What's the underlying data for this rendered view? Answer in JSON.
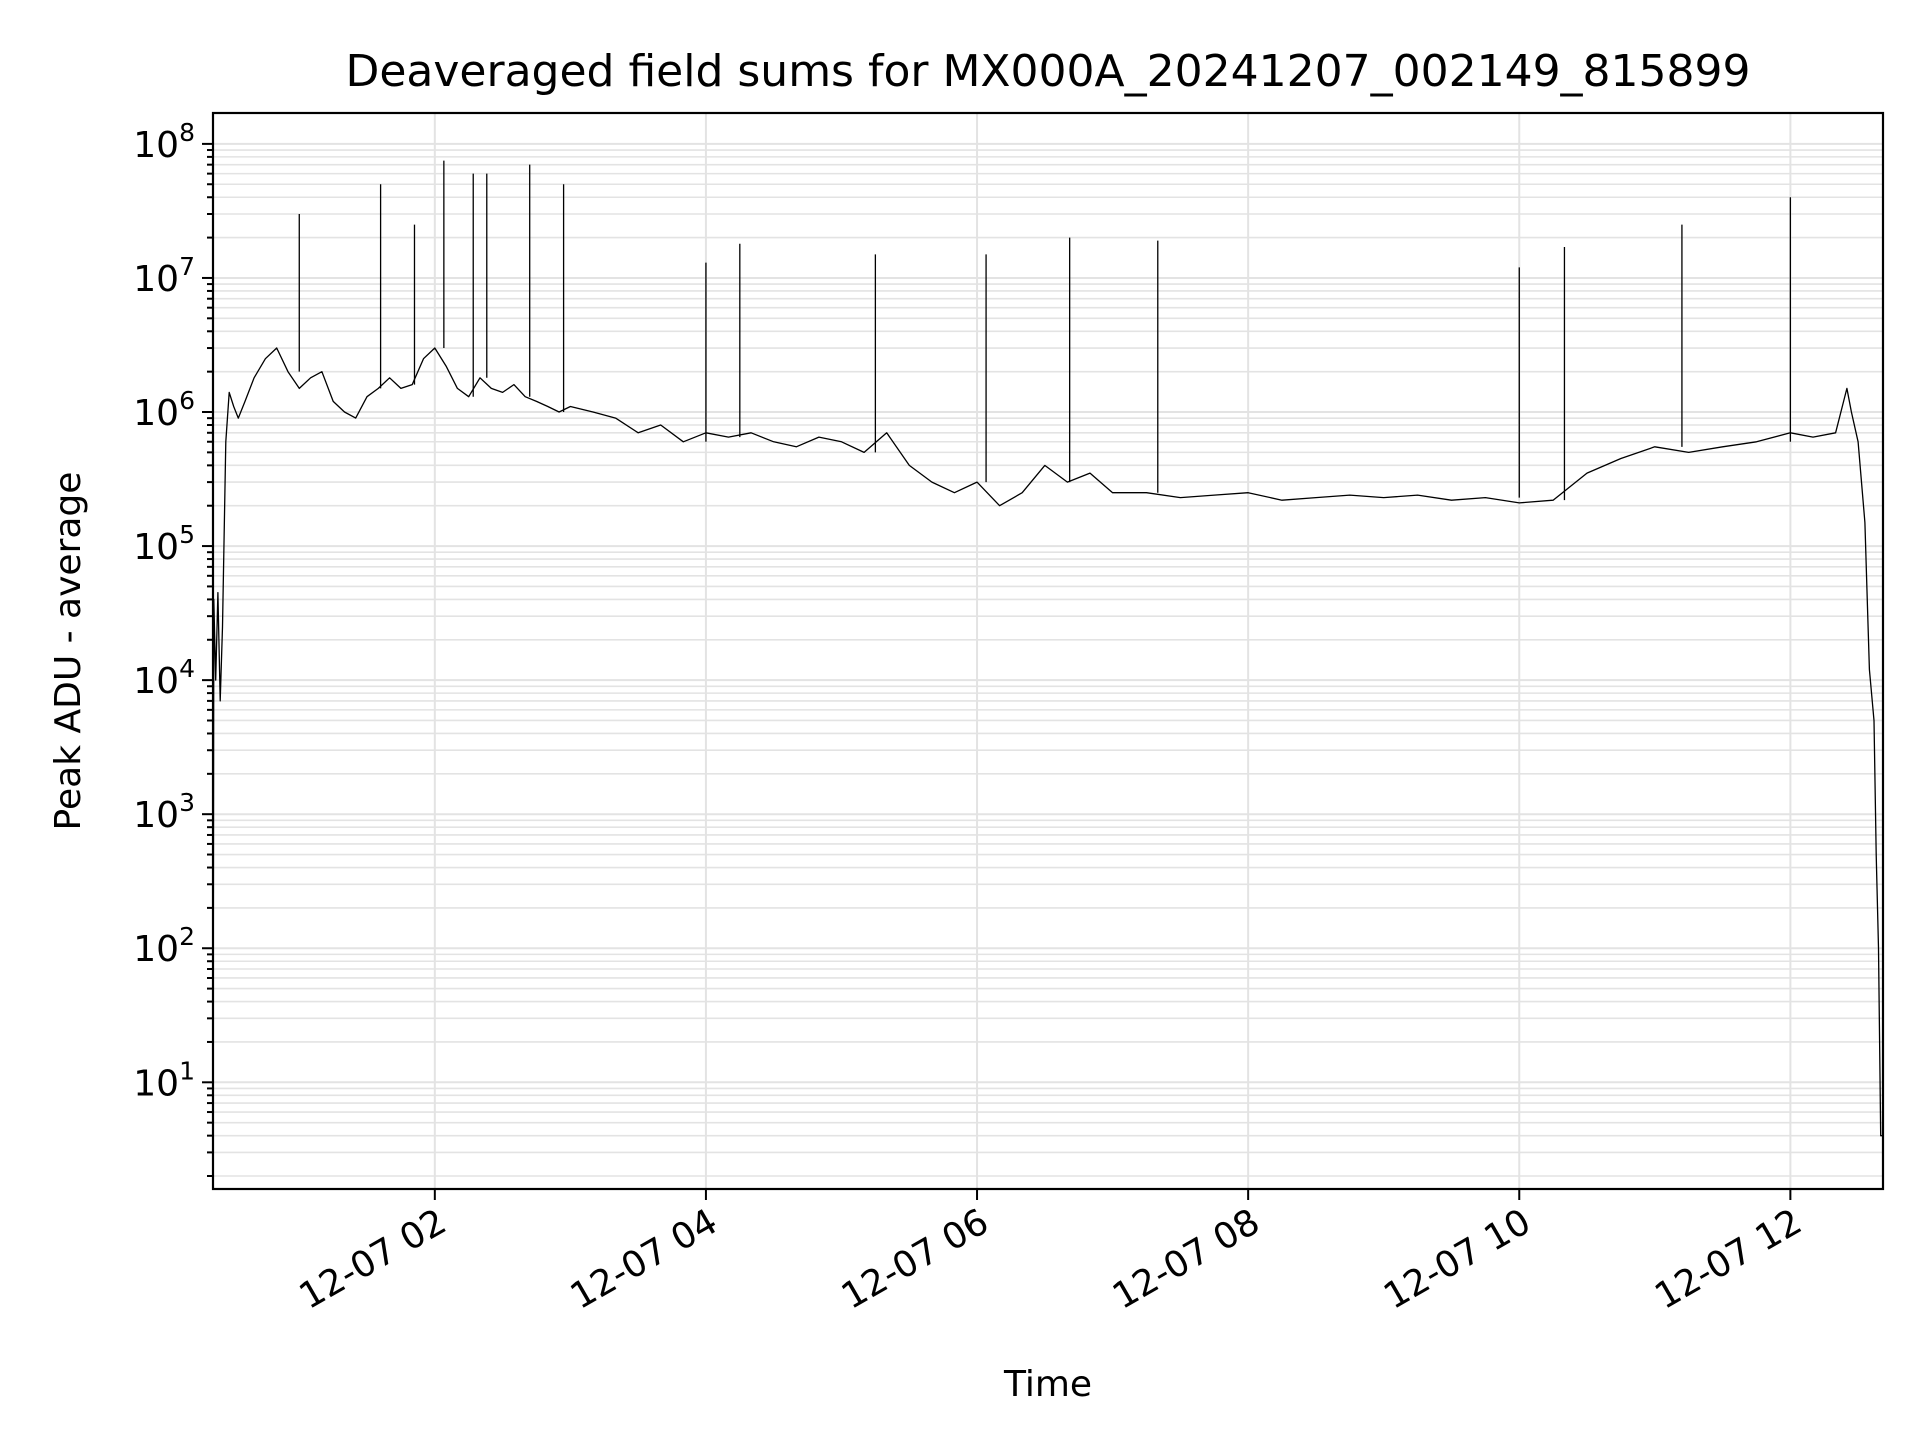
{
  "chart_data": {
    "type": "line",
    "title": "Deaveraged field sums for MX000A_20241207_002149_815899",
    "xlabel": "Time",
    "ylabel": "Peak ADU - average",
    "xscale": "time",
    "yscale": "log",
    "xlim": [
      "2024-12-07T00:21:49",
      "2024-12-07T12:41:00"
    ],
    "ylim": [
      1.6,
      170000000
    ],
    "grid": "major and minor, both axes",
    "line_color": "#000000",
    "x_ticks": [
      {
        "value": "2024-12-07T02:00:00",
        "label": "12-07 02"
      },
      {
        "value": "2024-12-07T04:00:00",
        "label": "12-07 04"
      },
      {
        "value": "2024-12-07T06:00:00",
        "label": "12-07 06"
      },
      {
        "value": "2024-12-07T08:00:00",
        "label": "12-07 08"
      },
      {
        "value": "2024-12-07T10:00:00",
        "label": "12-07 10"
      },
      {
        "value": "2024-12-07T12:00:00",
        "label": "12-07 12"
      }
    ],
    "y_ticks": [
      {
        "value": 10,
        "base": "10",
        "exp": "1"
      },
      {
        "value": 100,
        "base": "10",
        "exp": "2"
      },
      {
        "value": 1000,
        "base": "10",
        "exp": "3"
      },
      {
        "value": 10000,
        "base": "10",
        "exp": "4"
      },
      {
        "value": 100000,
        "base": "10",
        "exp": "5"
      },
      {
        "value": 1000000,
        "base": "10",
        "exp": "6"
      },
      {
        "value": 10000000,
        "base": "10",
        "exp": "7"
      },
      {
        "value": 100000000,
        "base": "10",
        "exp": "8"
      }
    ],
    "series": [
      {
        "x": [
          "2024-12-07T00:21:49",
          "2024-12-07T00:22:10",
          "2024-12-07T00:23:00",
          "2024-12-07T00:24:00",
          "2024-12-07T00:25:00",
          "2024-12-07T00:26:00",
          "2024-12-07T00:27:30",
          "2024-12-07T00:29:00",
          "2024-12-07T00:31:00",
          "2024-12-07T00:33:00",
          "2024-12-07T00:36:00",
          "2024-12-07T00:40:00",
          "2024-12-07T00:45:00",
          "2024-12-07T00:50:00",
          "2024-12-07T00:55:00",
          "2024-12-07T01:00:00",
          "2024-12-07T01:05:00",
          "2024-12-07T01:10:00",
          "2024-12-07T01:15:00",
          "2024-12-07T01:20:00",
          "2024-12-07T01:25:00",
          "2024-12-07T01:30:00",
          "2024-12-07T01:35:00",
          "2024-12-07T01:40:00",
          "2024-12-07T01:45:00",
          "2024-12-07T01:50:00",
          "2024-12-07T01:55:00",
          "2024-12-07T02:00:00",
          "2024-12-07T02:05:00",
          "2024-12-07T02:10:00",
          "2024-12-07T02:15:00",
          "2024-12-07T02:20:00",
          "2024-12-07T02:25:00",
          "2024-12-07T02:30:00",
          "2024-12-07T02:35:00",
          "2024-12-07T02:40:00",
          "2024-12-07T02:45:00",
          "2024-12-07T02:50:00",
          "2024-12-07T02:55:00",
          "2024-12-07T03:00:00",
          "2024-12-07T03:10:00",
          "2024-12-07T03:20:00",
          "2024-12-07T03:30:00",
          "2024-12-07T03:40:00",
          "2024-12-07T03:50:00",
          "2024-12-07T04:00:00",
          "2024-12-07T04:10:00",
          "2024-12-07T04:20:00",
          "2024-12-07T04:30:00",
          "2024-12-07T04:40:00",
          "2024-12-07T04:50:00",
          "2024-12-07T05:00:00",
          "2024-12-07T05:10:00",
          "2024-12-07T05:20:00",
          "2024-12-07T05:30:00",
          "2024-12-07T05:40:00",
          "2024-12-07T05:50:00",
          "2024-12-07T06:00:00",
          "2024-12-07T06:10:00",
          "2024-12-07T06:20:00",
          "2024-12-07T06:30:00",
          "2024-12-07T06:40:00",
          "2024-12-07T06:50:00",
          "2024-12-07T07:00:00",
          "2024-12-07T07:15:00",
          "2024-12-07T07:30:00",
          "2024-12-07T07:45:00",
          "2024-12-07T08:00:00",
          "2024-12-07T08:15:00",
          "2024-12-07T08:30:00",
          "2024-12-07T08:45:00",
          "2024-12-07T09:00:00",
          "2024-12-07T09:15:00",
          "2024-12-07T09:30:00",
          "2024-12-07T09:45:00",
          "2024-12-07T10:00:00",
          "2024-12-07T10:15:00",
          "2024-12-07T10:30:00",
          "2024-12-07T10:45:00",
          "2024-12-07T11:00:00",
          "2024-12-07T11:15:00",
          "2024-12-07T11:30:00",
          "2024-12-07T11:45:00",
          "2024-12-07T12:00:00",
          "2024-12-07T12:10:00",
          "2024-12-07T12:20:00",
          "2024-12-07T12:25:00",
          "2024-12-07T12:27:00",
          "2024-12-07T12:30:00",
          "2024-12-07T12:33:00",
          "2024-12-07T12:35:00",
          "2024-12-07T12:37:00",
          "2024-12-07T12:38:00",
          "2024-12-07T12:39:00",
          "2024-12-07T12:40:00",
          "2024-12-07T12:41:00"
        ],
        "y": [
          2,
          40000,
          10000,
          45000,
          7000,
          25000,
          600000,
          1400000,
          1100000,
          900000,
          1200000,
          1800000,
          2500000,
          3000000,
          2000000,
          1500000,
          1800000,
          2000000,
          1200000,
          1000000,
          900000,
          1300000,
          1500000,
          1800000,
          1500000,
          1600000,
          2500000,
          3000000,
          2200000,
          1500000,
          1300000,
          1800000,
          1500000,
          1400000,
          1600000,
          1300000,
          1200000,
          1100000,
          1000000,
          1100000,
          1000000,
          900000,
          700000,
          800000,
          600000,
          700000,
          650000,
          700000,
          600000,
          550000,
          650000,
          600000,
          500000,
          700000,
          400000,
          300000,
          250000,
          300000,
          200000,
          250000,
          400000,
          300000,
          350000,
          250000,
          250000,
          230000,
          240000,
          250000,
          220000,
          230000,
          240000,
          230000,
          240000,
          220000,
          230000,
          210000,
          220000,
          350000,
          450000,
          550000,
          500000,
          550000,
          600000,
          700000,
          650000,
          700000,
          1500000,
          1000000,
          600000,
          150000,
          12000,
          5000,
          500,
          100,
          4,
          4
        ]
      }
    ],
    "spikes": [
      {
        "x": "2024-12-07T01:00:00",
        "y": 30000000
      },
      {
        "x": "2024-12-07T01:36:00",
        "y": 50000000
      },
      {
        "x": "2024-12-07T01:51:00",
        "y": 25000000
      },
      {
        "x": "2024-12-07T02:04:00",
        "y": 75000000
      },
      {
        "x": "2024-12-07T02:17:00",
        "y": 60000000
      },
      {
        "x": "2024-12-07T02:23:00",
        "y": 60000000
      },
      {
        "x": "2024-12-07T02:42:00",
        "y": 70000000
      },
      {
        "x": "2024-12-07T02:57:00",
        "y": 50000000
      },
      {
        "x": "2024-12-07T04:00:00",
        "y": 13000000
      },
      {
        "x": "2024-12-07T04:15:00",
        "y": 18000000
      },
      {
        "x": "2024-12-07T05:15:00",
        "y": 15000000
      },
      {
        "x": "2024-12-07T06:04:00",
        "y": 15000000
      },
      {
        "x": "2024-12-07T06:41:00",
        "y": 20000000
      },
      {
        "x": "2024-12-07T07:20:00",
        "y": 19000000
      },
      {
        "x": "2024-12-07T10:00:00",
        "y": 12000000
      },
      {
        "x": "2024-12-07T10:20:00",
        "y": 17000000
      },
      {
        "x": "2024-12-07T11:12:00",
        "y": 25000000
      },
      {
        "x": "2024-12-07T12:00:00",
        "y": 40000000
      }
    ]
  }
}
